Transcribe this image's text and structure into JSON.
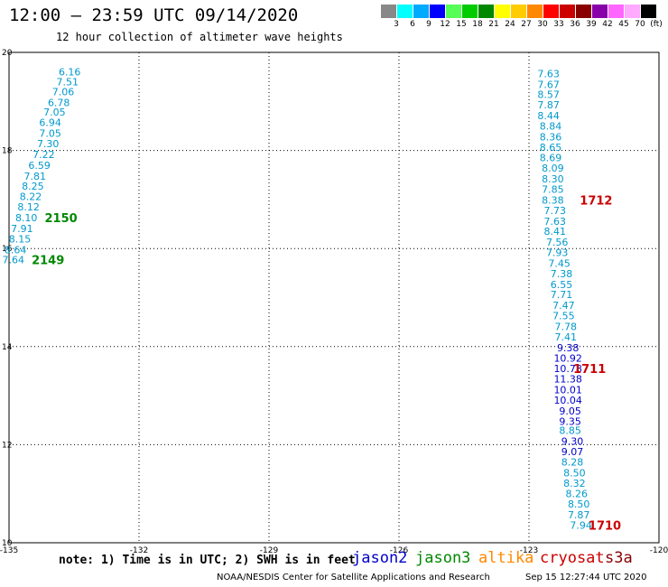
{
  "header": {
    "title": "12:00 — 23:59 UTC 09/14/2020",
    "subtitle": "12 hour collection of altimeter wave heights"
  },
  "color_scale": {
    "labels": [
      "3",
      "6",
      "9",
      "12",
      "15",
      "18",
      "21",
      "24",
      "27",
      "30",
      "33",
      "36",
      "39",
      "42",
      "45",
      "70",
      "(ft)"
    ],
    "colors": [
      "#888888",
      "#00ffff",
      "#00aaff",
      "#0000ff",
      "#55ff55",
      "#00cc00",
      "#008800",
      "#ffff00",
      "#ffcc00",
      "#ff8800",
      "#ff0000",
      "#cc0000",
      "#880000",
      "#8800aa",
      "#ff66ff",
      "#ffaaff",
      "#000000"
    ]
  },
  "footer": {
    "note": "note: 1) Time is in UTC; 2) SWH is in feet",
    "credit": "NOAA/NESDIS Center for Satellite Applications and Research",
    "timestamp": "Sep 15 12:27:44 UTC 2020"
  },
  "legend": [
    {
      "label": "jason2",
      "color": "#0000cc"
    },
    {
      "label": "jason3",
      "color": "#008800"
    },
    {
      "label": "altika",
      "color": "#ff8800"
    },
    {
      "label": "cryosat",
      "color": "#cc0000"
    },
    {
      "label": "s3a",
      "color": "#880000"
    }
  ],
  "chart_data": {
    "type": "scatter",
    "xlim": [
      -135,
      -120
    ],
    "ylim": [
      10,
      20
    ],
    "x_ticks": [
      "-135",
      "-132",
      "-129",
      "-126",
      "-123",
      "-120"
    ],
    "y_ticks": [
      "10",
      "12",
      "14",
      "16",
      "18",
      "20"
    ],
    "x_tick_values": [
      -135,
      -132,
      -129,
      -126,
      -123,
      -120
    ],
    "y_tick_values": [
      10,
      12,
      14,
      16,
      18,
      20
    ],
    "grid": true,
    "series": [
      {
        "satellite": "jason3",
        "point_color": "#0099cc",
        "points": [
          {
            "x": -133.6,
            "y": 19.6,
            "swh": "6.16"
          },
          {
            "x": -133.65,
            "y": 19.4,
            "swh": "7.51"
          },
          {
            "x": -133.75,
            "y": 19.2,
            "swh": "7.06"
          },
          {
            "x": -133.85,
            "y": 18.98,
            "swh": "6.78"
          },
          {
            "x": -133.95,
            "y": 18.78,
            "swh": "7.05"
          },
          {
            "x": -134.05,
            "y": 18.57,
            "swh": "6.94"
          },
          {
            "x": -134.05,
            "y": 18.35,
            "swh": "7.05"
          },
          {
            "x": -134.1,
            "y": 18.14,
            "swh": "7.30"
          },
          {
            "x": -134.2,
            "y": 17.92,
            "swh": "7.22"
          },
          {
            "x": -134.3,
            "y": 17.7,
            "swh": "6.59"
          },
          {
            "x": -134.4,
            "y": 17.48,
            "swh": "7.81"
          },
          {
            "x": -134.45,
            "y": 17.27,
            "swh": "8.25"
          },
          {
            "x": -134.5,
            "y": 17.06,
            "swh": "8.22"
          },
          {
            "x": -134.55,
            "y": 16.85,
            "swh": "8.12"
          },
          {
            "x": -134.6,
            "y": 16.63,
            "swh": "8.10"
          },
          {
            "x": -134.7,
            "y": 16.41,
            "swh": "7.91"
          },
          {
            "x": -134.75,
            "y": 16.2,
            "swh": "8.15"
          },
          {
            "x": -134.85,
            "y": 15.98,
            "swh": "8.64"
          },
          {
            "x": -134.9,
            "y": 15.77,
            "swh": "7.64"
          }
        ],
        "time_labels": [
          {
            "x": -133.8,
            "y": 16.63,
            "text": "2150"
          },
          {
            "x": -134.1,
            "y": 15.77,
            "text": "2149"
          }
        ],
        "time_label_color": "#008800"
      },
      {
        "satellite": "cryosat",
        "point_color": "#0099cc",
        "points": [
          {
            "x": -122.55,
            "y": 19.57,
            "swh": "7.63"
          },
          {
            "x": -122.55,
            "y": 19.35,
            "swh": "7.67"
          },
          {
            "x": -122.55,
            "y": 19.14,
            "swh": "8.57"
          },
          {
            "x": -122.55,
            "y": 18.93,
            "swh": "7.87"
          },
          {
            "x": -122.55,
            "y": 18.71,
            "swh": "8.44"
          },
          {
            "x": -122.5,
            "y": 18.5,
            "swh": "8.84"
          },
          {
            "x": -122.5,
            "y": 18.28,
            "swh": "8.36"
          },
          {
            "x": -122.5,
            "y": 18.07,
            "swh": "8.65"
          },
          {
            "x": -122.5,
            "y": 17.85,
            "swh": "8.69"
          },
          {
            "x": -122.45,
            "y": 17.64,
            "swh": "8.09"
          },
          {
            "x": -122.45,
            "y": 17.42,
            "swh": "8.30"
          },
          {
            "x": -122.45,
            "y": 17.21,
            "swh": "7.85"
          },
          {
            "x": -122.45,
            "y": 16.99,
            "swh": "8.38"
          },
          {
            "x": -122.4,
            "y": 16.78,
            "swh": "7.73"
          },
          {
            "x": -122.4,
            "y": 16.56,
            "swh": "7.63"
          },
          {
            "x": -122.4,
            "y": 16.35,
            "swh": "8.41"
          },
          {
            "x": -122.35,
            "y": 16.13,
            "swh": "7.56"
          },
          {
            "x": -122.35,
            "y": 15.92,
            "swh": "7.93"
          },
          {
            "x": -122.3,
            "y": 15.7,
            "swh": "7.45"
          },
          {
            "x": -122.25,
            "y": 15.49,
            "swh": "7.38"
          },
          {
            "x": -122.25,
            "y": 15.27,
            "swh": "6.55"
          },
          {
            "x": -122.25,
            "y": 15.06,
            "swh": "7.71"
          },
          {
            "x": -122.2,
            "y": 14.84,
            "swh": "7.47"
          },
          {
            "x": -122.2,
            "y": 14.63,
            "swh": "7.55"
          },
          {
            "x": -122.15,
            "y": 14.41,
            "swh": "7.78"
          },
          {
            "x": -122.15,
            "y": 14.2,
            "swh": "7.41"
          },
          {
            "x": -122.05,
            "y": 12.29,
            "swh": "8.85"
          },
          {
            "x": -122.0,
            "y": 11.65,
            "swh": "8.28"
          },
          {
            "x": -121.95,
            "y": 11.43,
            "swh": "8.50"
          },
          {
            "x": -121.95,
            "y": 11.22,
            "swh": "8.32"
          },
          {
            "x": -121.9,
            "y": 11.0,
            "swh": "8.26"
          },
          {
            "x": -121.85,
            "y": 10.79,
            "swh": "8.50"
          },
          {
            "x": -121.85,
            "y": 10.57,
            "swh": "7.87"
          },
          {
            "x": -121.8,
            "y": 10.36,
            "swh": "7.94"
          }
        ],
        "time_labels": [
          {
            "x": -121.45,
            "y": 16.99,
            "text": "1712"
          },
          {
            "x": -121.25,
            "y": 10.36,
            "text": "1710"
          }
        ],
        "time_label_color": "#cc0000"
      },
      {
        "satellite": "cryosat",
        "point_color": "#0000cc",
        "points": [
          {
            "x": -122.1,
            "y": 13.98,
            "swh": "9.38"
          },
          {
            "x": -122.1,
            "y": 13.77,
            "swh": "10.92"
          },
          {
            "x": -122.1,
            "y": 13.55,
            "swh": "10.78"
          },
          {
            "x": -122.1,
            "y": 13.34,
            "swh": "11.38"
          },
          {
            "x": -122.1,
            "y": 13.12,
            "swh": "10.01"
          },
          {
            "x": -122.1,
            "y": 12.91,
            "swh": "10.04"
          },
          {
            "x": -122.05,
            "y": 12.69,
            "swh": "9.05"
          },
          {
            "x": -122.05,
            "y": 12.48,
            "swh": "9.35"
          },
          {
            "x": -122.0,
            "y": 12.07,
            "swh": "9.30"
          },
          {
            "x": -122.0,
            "y": 11.86,
            "swh": "9.07"
          }
        ],
        "time_labels": [
          {
            "x": -121.6,
            "y": 13.55,
            "text": "1711"
          }
        ],
        "time_label_color": "#cc0000"
      }
    ]
  }
}
